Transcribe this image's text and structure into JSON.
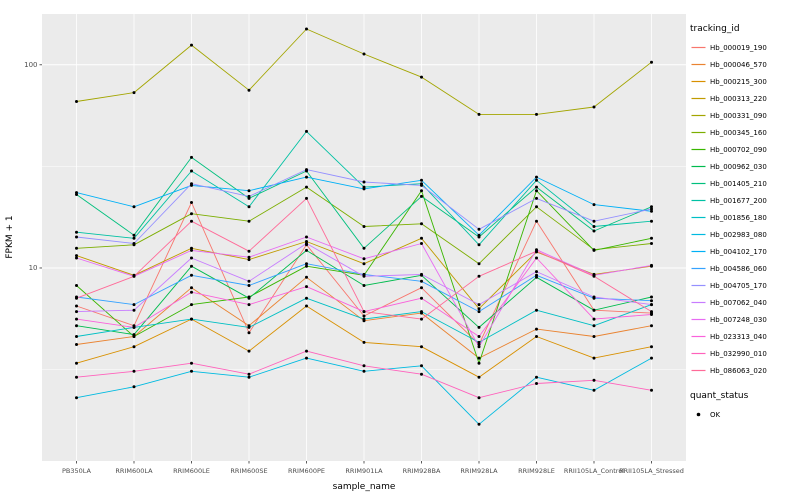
{
  "chart_data": {
    "type": "line",
    "title": "",
    "xlabel": "sample_name",
    "ylabel": "FPKM + 1",
    "y_scale": "log10",
    "ylim_log10": [
      0.05,
      2.25
    ],
    "y_ticks": [
      100,
      10
    ],
    "grid": true,
    "panel_bg": "#EBEBEB",
    "grid_color": "#FFFFFF",
    "point_color": "#000000",
    "categories": [
      "PB350LA",
      "RRIM600LA",
      "RRIM600LE",
      "RRIM600SE",
      "RRIM600PE",
      "RRIM901LA",
      "RRIM928BA",
      "RRIM928LA",
      "RRIM928LE",
      "RRII105LA_Control",
      "RRII105LA_Stressed"
    ],
    "series": [
      {
        "name": "Hb_000019_190",
        "color": "#F8766D",
        "values": [
          6.5,
          5.2,
          21,
          4.8,
          13,
          5.8,
          8,
          4.2,
          17,
          6.2,
          6
        ]
      },
      {
        "name": "Hb_000046_570",
        "color": "#EA8331",
        "values": [
          4.2,
          4.6,
          8,
          5.2,
          9,
          5.5,
          6,
          3.6,
          5,
          4.6,
          5.2
        ]
      },
      {
        "name": "Hb_000215_300",
        "color": "#D89000",
        "values": [
          3.4,
          4.1,
          5.6,
          3.9,
          6.5,
          4.3,
          4.1,
          2.9,
          4.6,
          3.6,
          4.1
        ]
      },
      {
        "name": "Hb_000313_220",
        "color": "#C09B00",
        "values": [
          11.5,
          9.2,
          12.5,
          11,
          13.5,
          10.5,
          14,
          6.3,
          12,
          9.3,
          10.2
        ]
      },
      {
        "name": "Hb_000331_090",
        "color": "#A3A500",
        "values": [
          66,
          73,
          125,
          75,
          150,
          113,
          87,
          57,
          57,
          62,
          103
        ]
      },
      {
        "name": "Hb_000345_160",
        "color": "#7CAE00",
        "values": [
          12.5,
          13,
          18.5,
          17,
          25,
          16,
          16.5,
          10.5,
          20,
          12.3,
          13.2
        ]
      },
      {
        "name": "Hb_000702_090",
        "color": "#39B600",
        "values": [
          8.2,
          4.6,
          6.6,
          7.2,
          10.2,
          9.2,
          24,
          3.4,
          24,
          12.2,
          14
        ]
      },
      {
        "name": "Hb_000962_030",
        "color": "#00BB4E",
        "values": [
          5.2,
          4.7,
          10.2,
          7.1,
          12.2,
          8.2,
          9.2,
          5.1,
          9,
          6.2,
          7.2
        ]
      },
      {
        "name": "Hb_001405_210",
        "color": "#00BF7D",
        "values": [
          23,
          14.5,
          35,
          22,
          30,
          12.5,
          22.5,
          14.2,
          25,
          15.2,
          20
        ]
      },
      {
        "name": "Hb_001677_200",
        "color": "#00C1A3",
        "values": [
          15,
          14,
          30,
          20,
          47,
          25,
          26,
          13,
          27,
          16,
          17
        ]
      },
      {
        "name": "Hb_001856_180",
        "color": "#00BFC4",
        "values": [
          4.6,
          5.1,
          5.6,
          5.1,
          7.1,
          5.6,
          6.1,
          4.3,
          6.2,
          5.2,
          6.6
        ]
      },
      {
        "name": "Hb_002983_080",
        "color": "#00BAE0",
        "values": [
          2.3,
          2.6,
          3.1,
          2.9,
          3.6,
          3.1,
          3.3,
          1.7,
          2.9,
          2.5,
          3.6
        ]
      },
      {
        "name": "Hb_004102_170",
        "color": "#00B0F6",
        "values": [
          23.5,
          20,
          25.5,
          24,
          28,
          24.5,
          27,
          14.5,
          28,
          20.5,
          19
        ]
      },
      {
        "name": "Hb_004586_060",
        "color": "#35A2FF",
        "values": [
          7.2,
          6.6,
          9.2,
          8.2,
          10.5,
          9.3,
          8.6,
          6.1,
          9.2,
          7.1,
          6.9
        ]
      },
      {
        "name": "Hb_004705_170",
        "color": "#9590FF",
        "values": [
          14.2,
          13.2,
          26,
          22.5,
          30.5,
          26.5,
          25.5,
          15.5,
          22,
          17,
          19.5
        ]
      },
      {
        "name": "Hb_007062_040",
        "color": "#C77CFF",
        "values": [
          6.1,
          6.2,
          11.2,
          8.6,
          13.2,
          9.1,
          9.3,
          6.6,
          9.6,
          7.2,
          6.6
        ]
      },
      {
        "name": "Hb_007248_030",
        "color": "#E76BF3",
        "values": [
          11.2,
          9.1,
          12.2,
          11.3,
          14.2,
          11.1,
          13.2,
          4.1,
          12.3,
          9.2,
          10.3
        ]
      },
      {
        "name": "Hb_023313_040",
        "color": "#FA62DB",
        "values": [
          5.6,
          5.1,
          7.6,
          6.6,
          8.1,
          6.1,
          7.1,
          4.6,
          11.2,
          5.6,
          5.9
        ]
      },
      {
        "name": "Hb_032990_010",
        "color": "#FF62BC",
        "values": [
          2.9,
          3.1,
          3.4,
          3,
          3.9,
          3.3,
          3,
          2.3,
          2.7,
          2.8,
          2.5
        ]
      },
      {
        "name": "Hb_086063_020",
        "color": "#FF6A98",
        "values": [
          7.1,
          9.1,
          17,
          12.1,
          22,
          6.1,
          5.6,
          9.1,
          12.1,
          9.1,
          6.1
        ]
      }
    ],
    "legend": {
      "tracking_title": "tracking_id",
      "quant_title": "quant_status",
      "quant_items": [
        {
          "label": "OK"
        }
      ]
    }
  }
}
